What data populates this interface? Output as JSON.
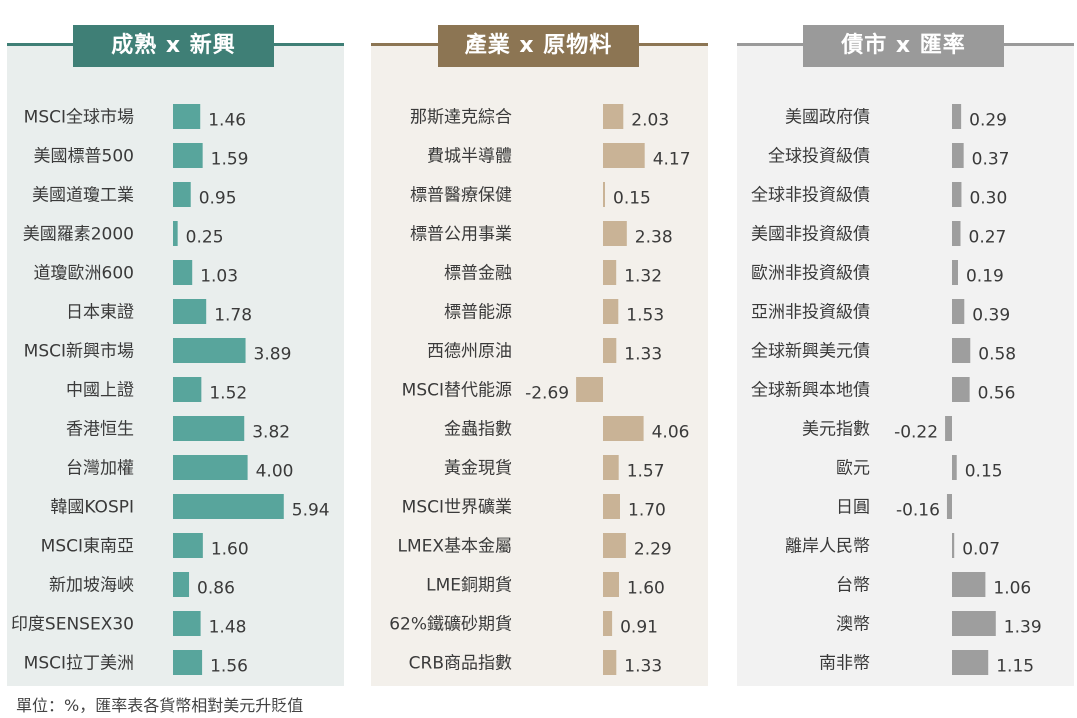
{
  "colors": {
    "panel1_bg": "#e9eeed",
    "panel1_accent": "#3f7f76",
    "panel1_bar": "#58a59c",
    "panel2_bg": "#f3f0eb",
    "panel2_accent": "#8c7553",
    "panel2_bar": "#c9b396",
    "panel3_bg": "#f2f2f2",
    "panel3_accent": "#9a9a9a",
    "panel3_bar": "#9e9e9e"
  },
  "footnote": "單位：%，匯率表各貨幣相對美元升貶值",
  "chart_data": [
    {
      "type": "bar",
      "orientation": "horizontal",
      "title": "成熟 x 新興",
      "categories": [
        "MSCI全球市場",
        "美國標普500",
        "美國道瓊工業",
        "美國羅素2000",
        "道瓊歐洲600",
        "日本東證",
        "MSCI新興市場",
        "中國上證",
        "香港恒生",
        "台灣加權",
        "韓國KOSPI",
        "MSCI東南亞",
        "新加坡海峽",
        "印度SENSEX30",
        "MSCI拉丁美洲"
      ],
      "values": [
        1.46,
        1.59,
        0.95,
        0.25,
        1.03,
        1.78,
        3.89,
        1.52,
        3.82,
        4.0,
        5.94,
        1.6,
        0.86,
        1.48,
        1.56
      ],
      "value_labels": [
        "1.46",
        "1.59",
        "0.95",
        "0.25",
        "1.03",
        "1.78",
        "3.89",
        "1.52",
        "3.82",
        "4.00",
        "5.94",
        "1.60",
        "0.86",
        "1.48",
        "1.56"
      ]
    },
    {
      "type": "bar",
      "orientation": "horizontal",
      "title": "產業 x 原物料",
      "categories": [
        "那斯達克綜合",
        "費城半導體",
        "標普醫療保健",
        "標普公用事業",
        "標普金融",
        "標普能源",
        "西德州原油",
        "MSCI替代能源",
        "金蟲指數",
        "黃金現貨",
        "MSCI世界礦業",
        "LMEX基本金屬",
        "LME銅期貨",
        "62%鐵礦砂期貨",
        "CRB商品指數"
      ],
      "values": [
        2.03,
        4.17,
        0.15,
        2.38,
        1.32,
        1.53,
        1.33,
        -2.69,
        4.06,
        1.57,
        1.7,
        2.29,
        1.6,
        0.91,
        1.33
      ],
      "value_labels": [
        "2.03",
        "4.17",
        "0.15",
        "2.38",
        "1.32",
        "1.53",
        "1.33",
        "-2.69",
        "4.06",
        "1.57",
        "1.70",
        "2.29",
        "1.60",
        "0.91",
        "1.33"
      ]
    },
    {
      "type": "bar",
      "orientation": "horizontal",
      "title": "債市 x 匯率",
      "categories": [
        "美國政府債",
        "全球投資級債",
        "全球非投資級債",
        "美國非投資級債",
        "歐洲非投資級債",
        "亞洲非投資級債",
        "全球新興美元債",
        "全球新興本地債",
        "美元指數",
        "歐元",
        "日圓",
        "離岸人民幣",
        "台幣",
        "澳幣",
        "南非幣"
      ],
      "values": [
        0.29,
        0.37,
        0.3,
        0.27,
        0.19,
        0.39,
        0.58,
        0.56,
        -0.22,
        0.15,
        -0.16,
        0.07,
        1.06,
        1.39,
        1.15
      ],
      "value_labels": [
        "0.29",
        "0.37",
        "0.30",
        "0.27",
        "0.19",
        "0.39",
        "0.58",
        "0.56",
        "-0.22",
        "0.15",
        "-0.16",
        "0.07",
        "1.06",
        "1.39",
        "1.15"
      ]
    }
  ]
}
